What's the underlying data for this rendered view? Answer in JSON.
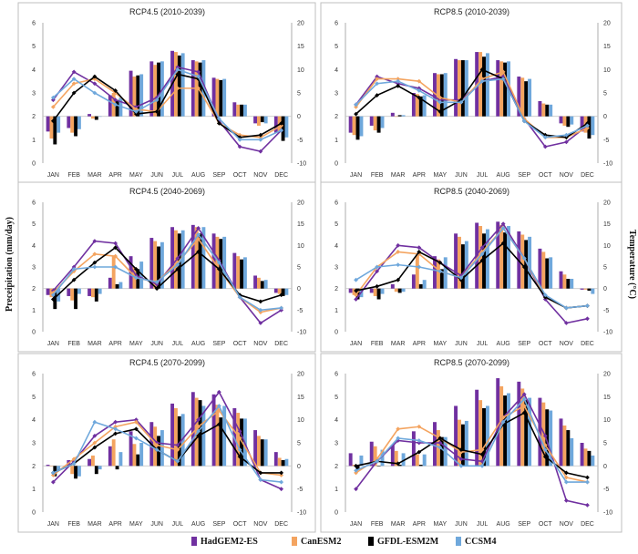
{
  "figure": {
    "left_axis_label": "Preceipitation (mm/day)",
    "right_axis_label": "Temperature (°C)"
  },
  "legend": [
    {
      "name": "HadGEM2-ES",
      "color": "#7030a0"
    },
    {
      "name": "CanESM2",
      "color": "#f4a460"
    },
    {
      "name": "GFDL-ESM2M",
      "color": "#000000"
    },
    {
      "name": "CCSM4",
      "color": "#6fa8dc"
    }
  ],
  "chart_data": [
    {
      "type": "bar+line",
      "title": "RCP4.5 (2010-2039)",
      "categories": [
        "JAN",
        "FEB",
        "MAR",
        "APR",
        "MAY",
        "JUN",
        "JUL",
        "AUG",
        "SEP",
        "OCT",
        "NOV",
        "DEC"
      ],
      "ylim": [
        0,
        6
      ],
      "y2lim": [
        -10,
        20
      ],
      "yticks": [
        0,
        1,
        2,
        3,
        4,
        5,
        6
      ],
      "y2ticks": [
        -10,
        -5,
        0,
        5,
        10,
        15,
        20
      ],
      "bars": [
        {
          "name": "HadGEM2-ES",
          "values": [
            1.35,
            1.5,
            2.1,
            2.9,
            3.95,
            4.35,
            4.8,
            4.4,
            3.65,
            2.6,
            1.7,
            1.3
          ]
        },
        {
          "name": "CanESM2",
          "values": [
            1.05,
            1.3,
            1.9,
            3.0,
            3.7,
            4.2,
            4.75,
            4.35,
            3.6,
            2.5,
            1.6,
            1.35
          ]
        },
        {
          "name": "GFDL-ESM2M",
          "values": [
            0.8,
            1.15,
            1.85,
            2.7,
            3.75,
            4.3,
            4.6,
            4.3,
            3.55,
            2.5,
            1.75,
            0.95
          ]
        },
        {
          "name": "CCSM4",
          "values": [
            1.3,
            1.45,
            2.0,
            2.8,
            3.8,
            4.35,
            4.7,
            4.4,
            3.6,
            2.5,
            1.7,
            1.1
          ]
        }
      ],
      "lines": [
        {
          "name": "HadGEM2-ES",
          "values": [
            3.5,
            9.5,
            7.0,
            3.5,
            2.0,
            4.0,
            10.5,
            9.5,
            -1.0,
            -6.5,
            -7.5,
            -3.0
          ]
        },
        {
          "name": "CanESM2",
          "values": [
            2.0,
            7.0,
            8.0,
            5.0,
            1.5,
            1.0,
            6.0,
            6.0,
            -1.5,
            -4.0,
            -4.5,
            -2.0
          ]
        },
        {
          "name": "GFDL-ESM2M",
          "values": [
            -1.0,
            5.0,
            8.5,
            5.5,
            0.5,
            1.0,
            9.0,
            8.0,
            -1.5,
            -4.5,
            -4.0,
            -1.5
          ]
        },
        {
          "name": "CCSM4",
          "values": [
            4.0,
            8.0,
            5.0,
            2.5,
            1.0,
            3.5,
            10.0,
            8.5,
            -0.5,
            -5.0,
            -5.0,
            -3.0
          ]
        }
      ]
    },
    {
      "type": "bar+line",
      "title": "RCP8.5 (2010-2039)",
      "categories": [
        "JAN",
        "FEB",
        "MAR",
        "APR",
        "MAY",
        "JUN",
        "JUL",
        "AUG",
        "SEP",
        "OCT",
        "NOV",
        "DEC"
      ],
      "ylim": [
        0,
        6
      ],
      "y2lim": [
        -10,
        20
      ],
      "yticks": [
        0,
        1,
        2,
        3,
        4,
        5,
        6
      ],
      "y2ticks": [
        -10,
        -5,
        0,
        5,
        10,
        15,
        20
      ],
      "bars": [
        {
          "name": "HadGEM2-ES",
          "values": [
            1.3,
            1.6,
            2.15,
            3.0,
            3.85,
            4.45,
            4.75,
            4.4,
            3.7,
            2.65,
            1.7,
            1.35
          ]
        },
        {
          "name": "CanESM2",
          "values": [
            1.2,
            1.4,
            2.0,
            2.95,
            3.8,
            4.4,
            4.75,
            4.35,
            3.65,
            2.55,
            1.6,
            1.3
          ]
        },
        {
          "name": "GFDL-ESM2M",
          "values": [
            1.0,
            1.3,
            2.05,
            2.85,
            3.8,
            4.4,
            4.55,
            4.3,
            3.5,
            2.5,
            1.55,
            1.05
          ]
        },
        {
          "name": "CCSM4",
          "values": [
            1.15,
            1.5,
            2.05,
            2.9,
            3.85,
            4.4,
            4.7,
            4.35,
            3.6,
            2.5,
            1.65,
            1.2
          ]
        }
      ],
      "lines": [
        {
          "name": "HadGEM2-ES",
          "values": [
            2.5,
            8.5,
            7.0,
            6.0,
            3.5,
            3.5,
            7.5,
            8.5,
            -0.5,
            -6.5,
            -5.5,
            -2.0
          ]
        },
        {
          "name": "CanESM2",
          "values": [
            2.0,
            8.0,
            8.0,
            7.5,
            4.0,
            3.0,
            8.0,
            9.5,
            -0.5,
            -4.5,
            -4.5,
            -2.5
          ]
        },
        {
          "name": "GFDL-ESM2M",
          "values": [
            0.5,
            4.5,
            6.5,
            4.0,
            1.0,
            3.5,
            10.0,
            8.0,
            -1.0,
            -4.0,
            -4.5,
            -1.5
          ]
        },
        {
          "name": "CCSM4",
          "values": [
            2.5,
            7.0,
            7.5,
            5.5,
            3.0,
            3.0,
            7.5,
            8.0,
            -1.0,
            -4.5,
            -4.0,
            -2.0
          ]
        }
      ]
    },
    {
      "type": "bar+line",
      "title": "RCP4.5 (2040-2069)",
      "categories": [
        "JAN",
        "FEB",
        "MAR",
        "APR",
        "MAY",
        "JUN",
        "JUL",
        "AUG",
        "SEP",
        "OCT",
        "NOV",
        "DEC"
      ],
      "ylim": [
        0,
        6
      ],
      "y2lim": [
        -10,
        20
      ],
      "yticks": [
        0,
        1,
        2,
        3,
        4,
        5,
        6
      ],
      "y2ticks": [
        -10,
        -5,
        0,
        5,
        10,
        15,
        20
      ],
      "bars": [
        {
          "name": "HadGEM2-ES",
          "values": [
            1.7,
            1.65,
            1.65,
            2.5,
            3.5,
            4.35,
            4.85,
            4.95,
            4.55,
            3.65,
            2.6,
            1.8
          ]
        },
        {
          "name": "CanESM2",
          "values": [
            1.6,
            1.45,
            1.6,
            3.5,
            3.0,
            4.2,
            4.7,
            4.85,
            4.4,
            3.5,
            2.5,
            1.75
          ]
        },
        {
          "name": "GFDL-ESM2M",
          "values": [
            1.05,
            1.05,
            1.4,
            2.2,
            2.9,
            3.95,
            4.55,
            4.55,
            4.3,
            3.35,
            2.35,
            1.65
          ]
        },
        {
          "name": "CCSM4",
          "values": [
            1.4,
            1.75,
            1.75,
            2.3,
            3.25,
            4.15,
            4.7,
            4.85,
            4.4,
            3.45,
            2.4,
            1.7
          ]
        }
      ],
      "lines": [
        {
          "name": "HadGEM2-ES",
          "values": [
            -0.5,
            5.0,
            11.0,
            10.5,
            3.0,
            1.0,
            7.0,
            14.0,
            6.5,
            -2.0,
            -8.0,
            -5.0
          ]
        },
        {
          "name": "CanESM2",
          "values": [
            -1.0,
            4.0,
            8.0,
            7.5,
            2.5,
            1.5,
            6.0,
            11.5,
            4.5,
            -2.0,
            -5.5,
            -4.5
          ]
        },
        {
          "name": "GFDL-ESM2M",
          "values": [
            -2.5,
            2.0,
            6.0,
            9.5,
            4.5,
            0.0,
            4.5,
            8.5,
            4.5,
            -1.5,
            -3.0,
            -1.5
          ]
        },
        {
          "name": "CCSM4",
          "values": [
            -1.5,
            4.5,
            5.0,
            5.0,
            2.5,
            1.5,
            5.5,
            12.5,
            6.0,
            -2.0,
            -5.0,
            -4.5
          ]
        }
      ]
    },
    {
      "type": "bar+line",
      "title": "RCP8.5 (2040-2069)",
      "categories": [
        "JAN",
        "FEB",
        "MAR",
        "APR",
        "MAY",
        "JUN",
        "JUL",
        "AUG",
        "SEP",
        "OCT",
        "NOV",
        "DEC"
      ],
      "ylim": [
        0,
        6
      ],
      "y2lim": [
        -10,
        20
      ],
      "yticks": [
        0,
        1,
        2,
        3,
        4,
        5,
        6
      ],
      "y2ticks": [
        -10,
        -5,
        0,
        5,
        10,
        15,
        20
      ],
      "bars": [
        {
          "name": "HadGEM2-ES",
          "values": [
            1.8,
            1.8,
            2.2,
            2.65,
            3.5,
            4.55,
            5.05,
            5.1,
            4.65,
            3.85,
            2.8,
            1.95
          ]
        },
        {
          "name": "CanESM2",
          "values": [
            1.7,
            1.65,
            1.85,
            3.55,
            3.35,
            4.4,
            4.9,
            4.95,
            4.5,
            3.7,
            2.65,
            1.95
          ]
        },
        {
          "name": "GFDL-ESM2M",
          "values": [
            1.5,
            1.5,
            1.8,
            2.2,
            2.9,
            4.05,
            4.55,
            4.6,
            4.25,
            3.4,
            2.45,
            1.9
          ]
        },
        {
          "name": "CCSM4",
          "values": [
            1.6,
            1.75,
            1.85,
            2.4,
            3.45,
            4.2,
            4.75,
            4.9,
            4.4,
            3.45,
            2.45,
            1.75
          ]
        }
      ],
      "lines": [
        {
          "name": "HadGEM2-ES",
          "values": [
            -2.5,
            4.0,
            10.0,
            9.5,
            6.0,
            3.0,
            9.5,
            15.0,
            7.0,
            -2.5,
            -8.0,
            -7.0
          ]
        },
        {
          "name": "CanESM2",
          "values": [
            -1.5,
            5.0,
            8.5,
            8.0,
            4.0,
            2.5,
            8.5,
            14.0,
            7.0,
            -2.0,
            -4.5,
            -4.0
          ]
        },
        {
          "name": "GFDL-ESM2M",
          "values": [
            -0.5,
            0.5,
            2.0,
            8.5,
            6.0,
            2.0,
            6.5,
            10.5,
            5.0,
            -2.0,
            -4.5,
            -4.0
          ]
        },
        {
          "name": "CCSM4",
          "values": [
            2.0,
            5.0,
            5.5,
            5.0,
            4.0,
            2.5,
            8.0,
            14.0,
            7.0,
            -1.5,
            -4.5,
            -4.0
          ]
        }
      ]
    },
    {
      "type": "bar+line",
      "title": "RCP4.5 (2070-2099)",
      "categories": [
        "JAN",
        "FEB",
        "MAR",
        "APR",
        "MAY",
        "JUN",
        "JUL",
        "AUG",
        "SEP",
        "OCT",
        "NOV",
        "DEC"
      ],
      "ylim": [
        0,
        6
      ],
      "y2lim": [
        -10,
        20
      ],
      "yticks": [
        0,
        1,
        2,
        3,
        4,
        5,
        6
      ],
      "y2ticks": [
        -10,
        -5,
        0,
        5,
        10,
        15,
        20
      ],
      "bars": [
        {
          "name": "HadGEM2-ES",
          "values": [
            2.05,
            2.25,
            2.3,
            2.85,
            3.5,
            3.9,
            4.7,
            5.2,
            5.1,
            4.5,
            3.55,
            2.6
          ]
        },
        {
          "name": "CanESM2",
          "values": [
            2.0,
            1.65,
            2.45,
            3.15,
            2.95,
            3.7,
            4.5,
            4.95,
            4.65,
            4.3,
            3.3,
            2.35
          ]
        },
        {
          "name": "GFDL-ESM2M",
          "values": [
            1.55,
            1.45,
            1.65,
            1.85,
            2.5,
            3.3,
            4.15,
            4.85,
            4.1,
            4.05,
            3.15,
            2.25
          ]
        },
        {
          "name": "CCSM4",
          "values": [
            1.8,
            1.55,
            1.85,
            2.6,
            3.0,
            3.55,
            4.25,
            4.6,
            4.6,
            4.05,
            3.15,
            2.3
          ]
        }
      ],
      "lines": [
        {
          "name": "HadGEM2-ES",
          "values": [
            -3.5,
            1.0,
            6.5,
            9.5,
            10.0,
            5.0,
            4.5,
            10.0,
            16.0,
            7.5,
            -3.0,
            -5.0
          ]
        },
        {
          "name": "CanESM2",
          "values": [
            -2.0,
            1.5,
            5.0,
            8.5,
            9.5,
            4.5,
            3.5,
            8.5,
            12.0,
            6.0,
            -1.5,
            -2.0
          ]
        },
        {
          "name": "GFDL-ESM2M",
          "values": [
            -1.5,
            0.5,
            4.0,
            7.0,
            8.0,
            3.5,
            1.0,
            6.5,
            9.0,
            2.0,
            -1.5,
            -1.5
          ]
        },
        {
          "name": "CCSM4",
          "values": [
            -1.5,
            0.5,
            9.5,
            8.0,
            6.0,
            3.5,
            1.0,
            7.5,
            13.0,
            3.5,
            -3.0,
            -3.5
          ]
        }
      ]
    },
    {
      "type": "bar+line",
      "title": "RCP8.5 (2070-2099)",
      "categories": [
        "JAN",
        "FEB",
        "MAR",
        "APR",
        "MAY",
        "JUN",
        "JUL",
        "AUG",
        "SEP",
        "OCT",
        "NOV",
        "DEC"
      ],
      "ylim": [
        0,
        6
      ],
      "y2lim": [
        -10,
        20
      ],
      "yticks": [
        0,
        1,
        2,
        3,
        4,
        5,
        6
      ],
      "y2ticks": [
        -10,
        -5,
        0,
        5,
        10,
        15,
        20
      ],
      "bars": [
        {
          "name": "HadGEM2-ES",
          "values": [
            2.55,
            3.05,
            2.9,
            3.5,
            3.9,
            4.6,
            5.3,
            5.8,
            5.65,
            4.95,
            4.05,
            3.0
          ]
        },
        {
          "name": "CanESM2",
          "values": [
            2.05,
            2.85,
            2.65,
            2.5,
            3.55,
            4.0,
            4.85,
            5.45,
            5.35,
            4.75,
            3.75,
            2.75
          ]
        },
        {
          "name": "GFDL-ESM2M",
          "values": [
            1.85,
            2.0,
            2.05,
            2.05,
            3.25,
            3.8,
            4.5,
            5.05,
            4.85,
            4.45,
            3.55,
            2.65
          ]
        },
        {
          "name": "CCSM4",
          "values": [
            2.45,
            2.7,
            2.55,
            2.5,
            3.25,
            3.95,
            4.6,
            5.15,
            4.95,
            4.4,
            3.2,
            2.45
          ]
        }
      ],
      "lines": [
        {
          "name": "HadGEM2-ES",
          "values": [
            -5.0,
            1.0,
            5.5,
            5.0,
            5.0,
            1.5,
            1.0,
            10.5,
            15.5,
            6.5,
            -7.5,
            -8.5
          ]
        },
        {
          "name": "CanESM2",
          "values": [
            -1.5,
            1.5,
            8.0,
            8.5,
            6.0,
            3.0,
            3.5,
            10.5,
            13.0,
            4.5,
            -2.5,
            -3.5
          ]
        },
        {
          "name": "GFDL-ESM2M",
          "values": [
            0.0,
            1.0,
            0.5,
            3.0,
            6.0,
            3.5,
            2.5,
            9.0,
            11.5,
            2.0,
            -1.5,
            -2.5
          ]
        },
        {
          "name": "CCSM4",
          "values": [
            -1.0,
            1.0,
            6.0,
            5.5,
            4.0,
            0.0,
            0.0,
            9.5,
            14.5,
            3.5,
            -3.5,
            -3.5
          ]
        }
      ]
    }
  ]
}
